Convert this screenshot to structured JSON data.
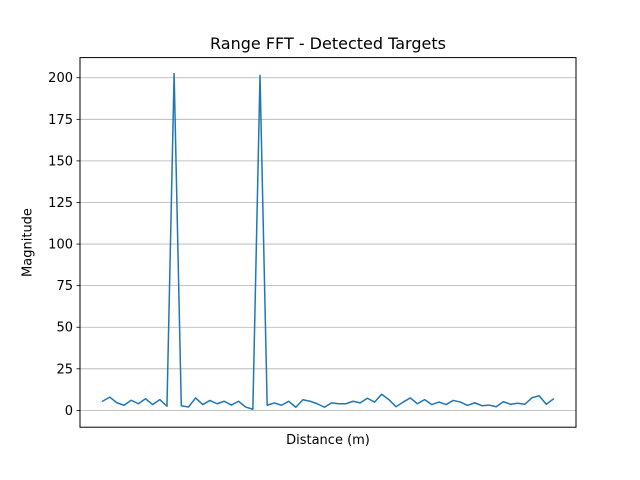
{
  "chart_data": {
    "type": "line",
    "title": "Range FFT - Detected Targets",
    "xlabel": "Distance (m)",
    "ylabel": "Magnitude",
    "x_note": "64 FFT range bins; x tick labels are not shown in the figure",
    "x": [
      0,
      1,
      2,
      3,
      4,
      5,
      6,
      7,
      8,
      9,
      10,
      11,
      12,
      13,
      14,
      15,
      16,
      17,
      18,
      19,
      20,
      21,
      22,
      23,
      24,
      25,
      26,
      27,
      28,
      29,
      30,
      31,
      32,
      33,
      34,
      35,
      36,
      37,
      38,
      39,
      40,
      41,
      42,
      43,
      44,
      45,
      46,
      47,
      48,
      49,
      50,
      51,
      52,
      53,
      54,
      55,
      56,
      57,
      58,
      59,
      60,
      61,
      62,
      63
    ],
    "values": [
      5.5,
      8.0,
      4.6,
      3.1,
      6.1,
      4.0,
      7.0,
      3.5,
      6.5,
      2.5,
      202.5,
      2.8,
      2.0,
      7.5,
      3.5,
      6.0,
      4.0,
      5.5,
      3.2,
      5.5,
      2.0,
      0.7,
      201.5,
      3.1,
      4.5,
      3.1,
      5.5,
      1.9,
      6.4,
      5.5,
      4.0,
      1.9,
      4.5,
      4.0,
      4.0,
      5.5,
      4.5,
      7.3,
      5.0,
      9.7,
      6.5,
      2.2,
      5.0,
      7.5,
      4.0,
      6.5,
      3.5,
      5.0,
      3.5,
      6.0,
      5.0,
      3.0,
      4.6,
      2.8,
      3.2,
      2.2,
      5.2,
      3.7,
      4.3,
      3.7,
      7.6,
      8.8,
      3.7,
      6.9
    ],
    "detected_peaks": [
      {
        "bin": 10,
        "magnitude": 202.5
      },
      {
        "bin": 22,
        "magnitude": 201.5
      }
    ],
    "yticks": [
      0,
      25,
      50,
      75,
      100,
      125,
      150,
      175,
      200
    ],
    "xticks": [],
    "ylim": [
      -10.1,
      212.1
    ],
    "xlim": [
      -3.15,
      66.15
    ],
    "grid": "horizontal-only",
    "legend": null,
    "line_color": "#1f77b4",
    "grid_color": "#b0b0b0",
    "axes_color": "#000000",
    "background_color": "#ffffff"
  }
}
